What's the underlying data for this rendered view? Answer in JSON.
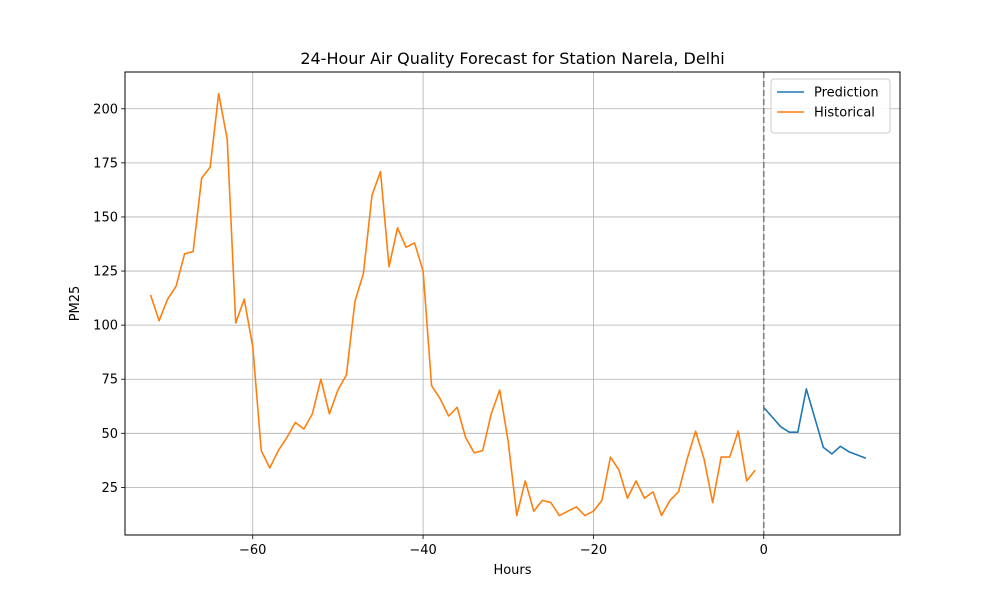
{
  "chart_data": {
    "type": "line",
    "title": "24-Hour Air Quality Forecast for Station Narela, Delhi",
    "xlabel": "Hours",
    "ylabel": "PM25",
    "xlim": [
      -75,
      16
    ],
    "ylim": [
      3,
      217
    ],
    "xticks": [
      -60,
      -40,
      -20,
      0
    ],
    "yticks": [
      25,
      50,
      75,
      100,
      125,
      150,
      175,
      200
    ],
    "grid": true,
    "legend_position": "top-right",
    "vline": {
      "x": 0,
      "style": "dashed",
      "color": "#808080"
    },
    "series": [
      {
        "name": "Prediction",
        "color": "#1f77b4",
        "x": [
          0,
          1,
          2,
          3,
          4,
          5,
          6,
          7,
          8,
          9,
          10,
          11,
          12
        ],
        "y": [
          62,
          57.5,
          53,
          50.5,
          50.5,
          70.5,
          57,
          43.5,
          40.5,
          44,
          41.5,
          40,
          38.5
        ]
      },
      {
        "name": "Historical",
        "color": "#ff7f0e",
        "x": [
          -72,
          -71,
          -70,
          -69,
          -68,
          -67,
          -66,
          -65,
          -64,
          -63,
          -62,
          -61,
          -60,
          -59,
          -58,
          -57,
          -56,
          -55,
          -54,
          -53,
          -52,
          -51,
          -50,
          -49,
          -48,
          -47,
          -46,
          -45,
          -44,
          -43,
          -42,
          -41,
          -40,
          -39,
          -38,
          -37,
          -36,
          -35,
          -34,
          -33,
          -32,
          -31,
          -30,
          -29,
          -28,
          -27,
          -26,
          -25,
          -24,
          -23,
          -22,
          -21,
          -20,
          -19,
          -18,
          -17,
          -16,
          -15,
          -14,
          -13,
          -12,
          -11,
          -10,
          -9,
          -8,
          -7,
          -6,
          -5,
          -4,
          -3,
          -2,
          -1
        ],
        "y": [
          114,
          102,
          112,
          118,
          133,
          134,
          168,
          173,
          207,
          186,
          101,
          112,
          90,
          42,
          34,
          42,
          48,
          55,
          52,
          59,
          75,
          59,
          70,
          77,
          111,
          124,
          160,
          171,
          127,
          145,
          136,
          138,
          125,
          72,
          66,
          58,
          62,
          48,
          41,
          42,
          59,
          70,
          46,
          12,
          28,
          14,
          19,
          18,
          12,
          14,
          16,
          12,
          14,
          19,
          39,
          33,
          20,
          28,
          20,
          23,
          12,
          19,
          23,
          38,
          51,
          38,
          18,
          39,
          39,
          51,
          28,
          33
        ]
      }
    ]
  }
}
